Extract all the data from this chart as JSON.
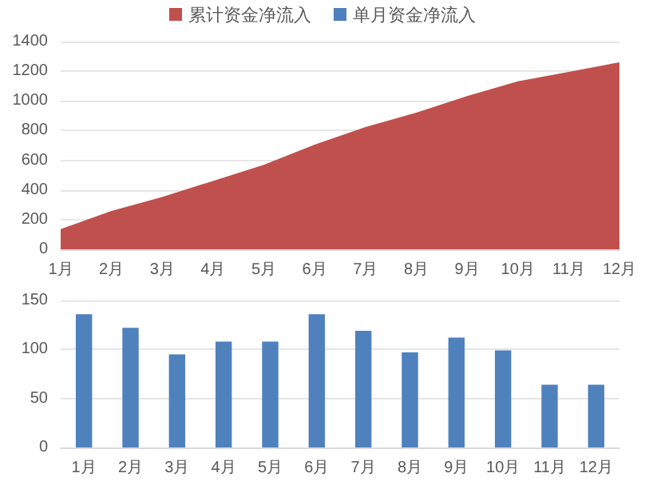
{
  "chart_data": [
    {
      "type": "area",
      "categories": [
        "1月",
        "2月",
        "3月",
        "4月",
        "5月",
        "6月",
        "7月",
        "8月",
        "9月",
        "10月",
        "11月",
        "12月"
      ],
      "series": [
        {
          "name": "累计资金净流入",
          "color": "#c0504d",
          "values": [
            136,
            258,
            353,
            461,
            569,
            705,
            824,
            921,
            1033,
            1132,
            1196,
            1260
          ]
        }
      ],
      "ylim": [
        0,
        1400
      ],
      "yticks": [
        0,
        200,
        400,
        600,
        800,
        1000,
        1200,
        1400
      ],
      "grid": "y",
      "legend": "top"
    },
    {
      "type": "bar",
      "categories": [
        "1月",
        "2月",
        "3月",
        "4月",
        "5月",
        "6月",
        "7月",
        "8月",
        "9月",
        "10月",
        "11月",
        "12月"
      ],
      "series": [
        {
          "name": "单月资金净流入",
          "color": "#4f81bd",
          "values": [
            136,
            122,
            95,
            108,
            108,
            136,
            119,
            97,
            112,
            99,
            64,
            64
          ]
        }
      ],
      "ylim": [
        0,
        150
      ],
      "yticks": [
        0,
        50,
        100,
        150
      ],
      "grid": "y",
      "legend": "top"
    }
  ]
}
